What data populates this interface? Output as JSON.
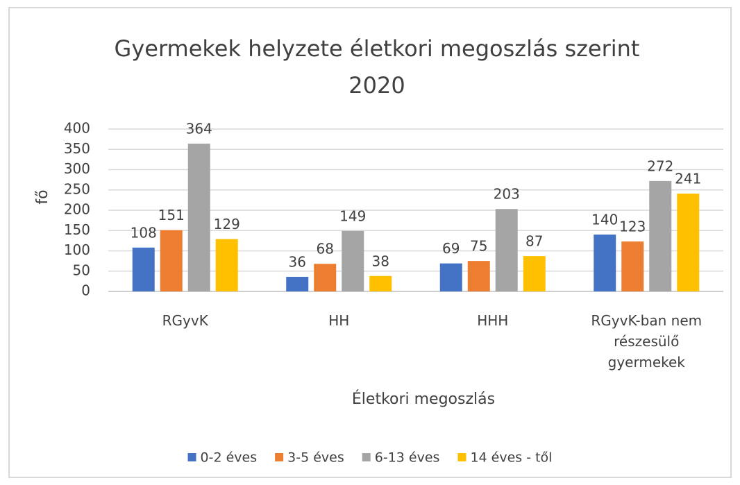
{
  "chart_data": {
    "type": "bar",
    "title": [
      "Gyermekek helyzete életkori megoszlás szerint",
      "2020"
    ],
    "x_label": "Életkori megoszlás",
    "y_label": "fő",
    "categories": [
      "RGyvK",
      "HH",
      "HHH",
      "RGyvK-ban nem részesülő gyermekek"
    ],
    "series": [
      {
        "name": "0-2 éves",
        "color": "#4472c4",
        "values": [
          108,
          36,
          69,
          140
        ]
      },
      {
        "name": "3-5 éves",
        "color": "#ed7d31",
        "values": [
          151,
          68,
          75,
          123
        ]
      },
      {
        "name": "6-13 éves",
        "color": "#a5a5a5",
        "values": [
          364,
          149,
          203,
          272
        ]
      },
      {
        "name": "14 éves - től",
        "color": "#ffc000",
        "values": [
          129,
          38,
          87,
          241
        ]
      }
    ],
    "ylim": [
      0,
      400
    ],
    "yticks": [
      0,
      50,
      100,
      150,
      200,
      250,
      300,
      350,
      400
    ],
    "grid": true,
    "legend": "bottom"
  }
}
